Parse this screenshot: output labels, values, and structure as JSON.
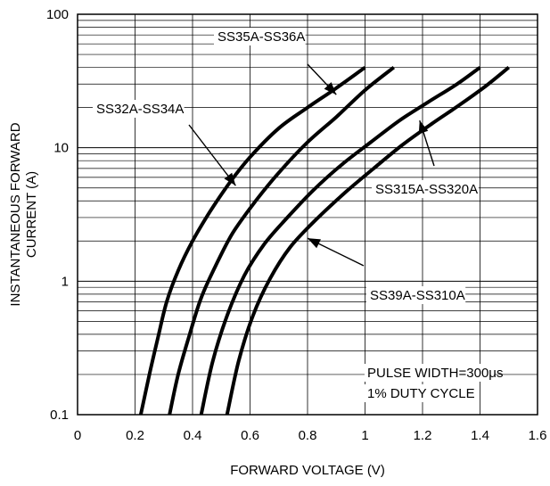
{
  "chart_data": {
    "type": "line",
    "title": "",
    "xlabel": "FORWARD VOLTAGE (V)",
    "ylabel": [
      "INSTANTANEOUS FORWARD",
      "CURRENT (A)"
    ],
    "xlim": [
      0,
      1.6
    ],
    "ylim": [
      0.1,
      100
    ],
    "yscale": "log",
    "grid": true,
    "x_ticks": [
      "0",
      "0.2",
      "0.4",
      "0.6",
      "0.8",
      "1",
      "1.2",
      "1.4",
      "1.6"
    ],
    "y_ticks": [
      "0.1",
      "1",
      "10",
      "100"
    ],
    "series": [
      {
        "name": "SS32A-SS34A",
        "x": [
          0.22,
          0.25,
          0.28,
          0.31,
          0.35,
          0.4,
          0.46,
          0.53,
          0.6,
          0.7,
          0.8,
          0.9,
          1.0
        ],
        "y": [
          0.1,
          0.2,
          0.38,
          0.7,
          1.2,
          2.0,
          3.3,
          5.5,
          8.5,
          14,
          20,
          28,
          40
        ]
      },
      {
        "name": "SS35A-SS36A",
        "x": [
          0.32,
          0.35,
          0.39,
          0.43,
          0.48,
          0.54,
          0.62,
          0.7,
          0.8,
          0.9,
          1.0,
          1.1
        ],
        "y": [
          0.1,
          0.2,
          0.4,
          0.75,
          1.3,
          2.3,
          4.0,
          6.5,
          11,
          17,
          27,
          40
        ]
      },
      {
        "name": "SS315A-SS320A",
        "x": [
          0.43,
          0.47,
          0.52,
          0.58,
          0.65,
          0.73,
          0.82,
          0.92,
          1.02,
          1.12,
          1.22,
          1.32,
          1.4
        ],
        "y": [
          0.1,
          0.25,
          0.55,
          1.1,
          1.9,
          3.0,
          4.8,
          7.5,
          11,
          16,
          22,
          30,
          40
        ]
      },
      {
        "name": "SS39A-SS310A",
        "x": [
          0.52,
          0.56,
          0.61,
          0.67,
          0.74,
          0.83,
          0.93,
          1.03,
          1.13,
          1.23,
          1.33,
          1.42,
          1.5
        ],
        "y": [
          0.1,
          0.25,
          0.55,
          1.05,
          1.8,
          2.9,
          4.6,
          7.0,
          10.5,
          15,
          21,
          29,
          40
        ]
      }
    ],
    "annotations": [
      {
        "text": "SS35A-SS36A",
        "target_series": 1,
        "arrow_to": [
          0.9,
          25
        ]
      },
      {
        "text": "SS32A-SS34A",
        "target_series": 0,
        "arrow_to": [
          0.55,
          5.2
        ]
      },
      {
        "text": "SS315A-SS320A",
        "target_series": 2,
        "arrow_to": [
          1.19,
          16
        ]
      },
      {
        "text": "SS39A-SS310A",
        "target_series": 3,
        "arrow_to": [
          0.8,
          2.1
        ]
      },
      {
        "text": "PULSE WIDTH=300μs"
      },
      {
        "text": "1% DUTY CYCLE"
      }
    ]
  }
}
